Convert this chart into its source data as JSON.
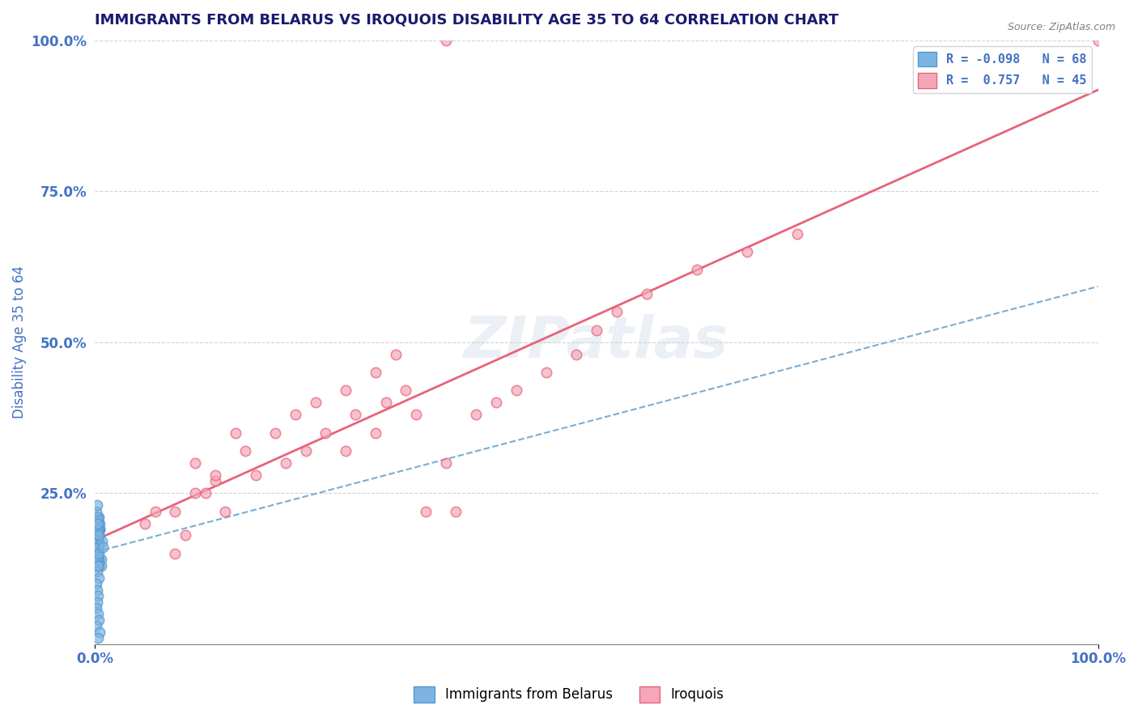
{
  "title": "IMMIGRANTS FROM BELARUS VS IROQUOIS DISABILITY AGE 35 TO 64 CORRELATION CHART",
  "source": "Source: ZipAtlas.com",
  "xlabel": "",
  "ylabel": "Disability Age 35 to 64",
  "xlim": [
    0.0,
    1.0
  ],
  "ylim": [
    0.0,
    1.0
  ],
  "xtick_labels": [
    "0.0%",
    "100.0%"
  ],
  "ytick_labels": [
    "25.0%",
    "50.0%",
    "75.0%",
    "100.0%"
  ],
  "legend_r1": "R = -0.098",
  "legend_n1": "N = 68",
  "legend_r2": "R =  0.757",
  "legend_n2": "N = 45",
  "blue_color": "#7EB4E2",
  "pink_color": "#F4A7B9",
  "blue_line_color": "#5599CC",
  "pink_line_color": "#E8637A",
  "watermark": "ZIPatlas",
  "title_color": "#1a1a6e",
  "axis_label_color": "#4472c4",
  "belarus_x": [
    0.002,
    0.003,
    0.001,
    0.005,
    0.004,
    0.003,
    0.006,
    0.002,
    0.001,
    0.004,
    0.003,
    0.002,
    0.005,
    0.001,
    0.003,
    0.004,
    0.002,
    0.006,
    0.003,
    0.001,
    0.002,
    0.004,
    0.003,
    0.005,
    0.002,
    0.001,
    0.003,
    0.004,
    0.002,
    0.003,
    0.001,
    0.002,
    0.003,
    0.004,
    0.002,
    0.001,
    0.003,
    0.002,
    0.004,
    0.003,
    0.002,
    0.001,
    0.003,
    0.004,
    0.002,
    0.001,
    0.003,
    0.002,
    0.004,
    0.003,
    0.002,
    0.001,
    0.003,
    0.004,
    0.002,
    0.001,
    0.007,
    0.002,
    0.004,
    0.003,
    0.002,
    0.001,
    0.003,
    0.004,
    0.008,
    0.001,
    0.005,
    0.003
  ],
  "belarus_y": [
    0.17,
    0.18,
    0.15,
    0.19,
    0.16,
    0.2,
    0.14,
    0.21,
    0.13,
    0.18,
    0.17,
    0.16,
    0.19,
    0.15,
    0.2,
    0.14,
    0.21,
    0.13,
    0.18,
    0.17,
    0.16,
    0.19,
    0.15,
    0.2,
    0.14,
    0.21,
    0.18,
    0.17,
    0.16,
    0.19,
    0.15,
    0.2,
    0.14,
    0.21,
    0.13,
    0.18,
    0.17,
    0.16,
    0.19,
    0.15,
    0.2,
    0.14,
    0.21,
    0.13,
    0.18,
    0.17,
    0.16,
    0.19,
    0.15,
    0.2,
    0.12,
    0.22,
    0.13,
    0.11,
    0.23,
    0.1,
    0.17,
    0.09,
    0.18,
    0.08,
    0.07,
    0.06,
    0.05,
    0.04,
    0.16,
    0.03,
    0.02,
    0.01
  ],
  "iroquois_x": [
    0.05,
    0.08,
    0.1,
    0.12,
    0.14,
    0.08,
    0.1,
    0.12,
    0.15,
    0.18,
    0.2,
    0.22,
    0.25,
    0.28,
    0.3,
    0.25,
    0.28,
    0.32,
    0.35,
    0.38,
    0.4,
    0.42,
    0.45,
    0.48,
    0.5,
    0.52,
    0.55,
    0.6,
    0.65,
    0.7,
    0.06,
    0.09,
    0.11,
    0.13,
    0.16,
    0.19,
    0.21,
    0.23,
    0.26,
    0.29,
    0.31,
    0.33,
    0.36,
    1.0,
    0.35
  ],
  "iroquois_y": [
    0.2,
    0.22,
    0.3,
    0.27,
    0.35,
    0.15,
    0.25,
    0.28,
    0.32,
    0.35,
    0.38,
    0.4,
    0.42,
    0.45,
    0.48,
    0.32,
    0.35,
    0.38,
    0.3,
    0.38,
    0.4,
    0.42,
    0.45,
    0.48,
    0.52,
    0.55,
    0.58,
    0.62,
    0.65,
    0.68,
    0.22,
    0.18,
    0.25,
    0.22,
    0.28,
    0.3,
    0.32,
    0.35,
    0.38,
    0.4,
    0.42,
    0.22,
    0.22,
    1.0,
    1.0
  ]
}
